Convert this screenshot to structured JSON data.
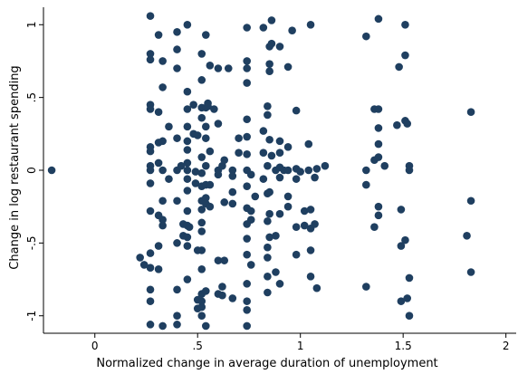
{
  "chart_data": {
    "type": "scatter",
    "title": "",
    "xlabel": "Normalized change in average duration of unemployment",
    "ylabel": "Change in log restaurant spending",
    "xlim": [
      -0.25,
      2.05
    ],
    "ylim": [
      -1.12,
      1.12
    ],
    "xticks": [
      {
        "value": 0,
        "label": "0"
      },
      {
        "value": 0.5,
        "label": ".5"
      },
      {
        "value": 1,
        "label": "1"
      },
      {
        "value": 1.5,
        "label": "1.5"
      },
      {
        "value": 2,
        "label": "2"
      }
    ],
    "yticks": [
      {
        "value": -1,
        "label": "-1"
      },
      {
        "value": -0.5,
        "label": "-.5"
      },
      {
        "value": 0,
        "label": "0"
      },
      {
        "value": 0.5,
        "label": ".5"
      },
      {
        "value": 1,
        "label": "1"
      }
    ],
    "marker_color": "#1f3f60",
    "grid": false,
    "points": [
      [
        -0.21,
        0.0
      ],
      [
        0.22,
        -0.6
      ],
      [
        0.24,
        -0.65
      ],
      [
        0.27,
        1.06
      ],
      [
        0.27,
        0.8
      ],
      [
        0.27,
        0.76
      ],
      [
        0.27,
        0.45
      ],
      [
        0.27,
        0.42
      ],
      [
        0.27,
        0.16
      ],
      [
        0.27,
        0.13
      ],
      [
        0.27,
        0.03
      ],
      [
        0.27,
        0.0
      ],
      [
        0.27,
        -0.09
      ],
      [
        0.27,
        -0.28
      ],
      [
        0.27,
        -0.57
      ],
      [
        0.27,
        -0.67
      ],
      [
        0.27,
        -0.82
      ],
      [
        0.27,
        -0.9
      ],
      [
        0.27,
        -1.06
      ],
      [
        0.31,
        0.93
      ],
      [
        0.31,
        0.4
      ],
      [
        0.31,
        0.19
      ],
      [
        0.31,
        0.05
      ],
      [
        0.31,
        -0.31
      ],
      [
        0.31,
        -0.52
      ],
      [
        0.31,
        -0.68
      ],
      [
        0.33,
        0.75
      ],
      [
        0.33,
        0.57
      ],
      [
        0.33,
        0.2
      ],
      [
        0.33,
        0.0
      ],
      [
        0.33,
        -0.21
      ],
      [
        0.33,
        -0.34
      ],
      [
        0.33,
        -0.38
      ],
      [
        0.33,
        -1.07
      ],
      [
        0.36,
        0.3
      ],
      [
        0.36,
        -0.06
      ],
      [
        0.4,
        0.95
      ],
      [
        0.4,
        0.83
      ],
      [
        0.4,
        0.7
      ],
      [
        0.4,
        0.22
      ],
      [
        0.4,
        0.0
      ],
      [
        0.4,
        -0.21
      ],
      [
        0.4,
        -0.5
      ],
      [
        0.4,
        -0.82
      ],
      [
        0.4,
        -1.0
      ],
      [
        0.4,
        -1.06
      ],
      [
        0.42,
        0.03
      ],
      [
        0.43,
        -0.37
      ],
      [
        0.43,
        -0.45
      ],
      [
        0.45,
        1.0
      ],
      [
        0.45,
        0.54
      ],
      [
        0.45,
        0.42
      ],
      [
        0.45,
        0.3
      ],
      [
        0.45,
        0.2
      ],
      [
        0.45,
        0.14
      ],
      [
        0.45,
        0.05
      ],
      [
        0.45,
        0.0
      ],
      [
        0.45,
        -0.06
      ],
      [
        0.45,
        -0.14
      ],
      [
        0.45,
        -0.28
      ],
      [
        0.45,
        -0.38
      ],
      [
        0.45,
        -0.46
      ],
      [
        0.45,
        -0.52
      ],
      [
        0.45,
        -0.75
      ],
      [
        0.46,
        -0.39
      ],
      [
        0.48,
        0.45
      ],
      [
        0.48,
        0.25
      ],
      [
        0.49,
        -0.01
      ],
      [
        0.49,
        -0.09
      ],
      [
        0.5,
        0.24
      ],
      [
        0.5,
        -0.55
      ],
      [
        0.5,
        -0.89
      ],
      [
        0.5,
        -0.95
      ],
      [
        0.52,
        0.8
      ],
      [
        0.52,
        0.62
      ],
      [
        0.52,
        0.43
      ],
      [
        0.52,
        0.36
      ],
      [
        0.52,
        0.09
      ],
      [
        0.52,
        -0.02
      ],
      [
        0.52,
        -0.11
      ],
      [
        0.52,
        -0.21
      ],
      [
        0.52,
        -0.27
      ],
      [
        0.52,
        -0.36
      ],
      [
        0.52,
        -0.42
      ],
      [
        0.52,
        -0.55
      ],
      [
        0.52,
        -0.68
      ],
      [
        0.52,
        -0.85
      ],
      [
        0.52,
        -0.9
      ],
      [
        0.52,
        -0.94
      ],
      [
        0.52,
        -1.0
      ],
      [
        0.54,
        0.93
      ],
      [
        0.54,
        0.43
      ],
      [
        0.54,
        0.3
      ],
      [
        0.54,
        0.22
      ],
      [
        0.54,
        0.03
      ],
      [
        0.54,
        -0.1
      ],
      [
        0.54,
        -0.19
      ],
      [
        0.54,
        -0.23
      ],
      [
        0.54,
        -0.83
      ],
      [
        0.54,
        -1.07
      ],
      [
        0.55,
        0.46
      ],
      [
        0.55,
        0.44
      ],
      [
        0.56,
        0.72
      ],
      [
        0.56,
        0.13
      ],
      [
        0.56,
        -0.1
      ],
      [
        0.56,
        -0.25
      ],
      [
        0.58,
        0.42
      ],
      [
        0.6,
        0.7
      ],
      [
        0.6,
        0.32
      ],
      [
        0.6,
        0.0
      ],
      [
        0.6,
        -0.03
      ],
      [
        0.6,
        -0.62
      ],
      [
        0.6,
        -0.85
      ],
      [
        0.62,
        0.03
      ],
      [
        0.62,
        -0.8
      ],
      [
        0.62,
        -0.86
      ],
      [
        0.63,
        0.07
      ],
      [
        0.63,
        -0.22
      ],
      [
        0.63,
        -0.62
      ],
      [
        0.65,
        0.7
      ],
      [
        0.67,
        0.0
      ],
      [
        0.67,
        -0.04
      ],
      [
        0.67,
        -0.15
      ],
      [
        0.67,
        -0.23
      ],
      [
        0.67,
        -0.88
      ],
      [
        0.7,
        0.22
      ],
      [
        0.7,
        0.12
      ],
      [
        0.74,
        0.98
      ],
      [
        0.74,
        0.75
      ],
      [
        0.74,
        0.7
      ],
      [
        0.74,
        0.6
      ],
      [
        0.74,
        0.35
      ],
      [
        0.74,
        0.23
      ],
      [
        0.74,
        0.11
      ],
      [
        0.74,
        0.0
      ],
      [
        0.74,
        -0.11
      ],
      [
        0.74,
        -0.26
      ],
      [
        0.74,
        -0.37
      ],
      [
        0.74,
        -0.47
      ],
      [
        0.74,
        -0.58
      ],
      [
        0.74,
        -0.78
      ],
      [
        0.74,
        -0.9
      ],
      [
        0.74,
        -0.96
      ],
      [
        0.74,
        -1.07
      ],
      [
        0.76,
        -0.03
      ],
      [
        0.76,
        -0.28
      ],
      [
        0.76,
        -0.34
      ],
      [
        0.76,
        -0.65
      ],
      [
        0.78,
        -0.18
      ],
      [
        0.82,
        0.98
      ],
      [
        0.82,
        0.27
      ],
      [
        0.82,
        0.12
      ],
      [
        0.82,
        -0.06
      ],
      [
        0.84,
        0.44
      ],
      [
        0.84,
        0.38
      ],
      [
        0.84,
        0.03
      ],
      [
        0.84,
        -0.16
      ],
      [
        0.84,
        -0.35
      ],
      [
        0.84,
        -0.53
      ],
      [
        0.84,
        -0.6
      ],
      [
        0.84,
        -0.73
      ],
      [
        0.84,
        -0.84
      ],
      [
        0.85,
        0.85
      ],
      [
        0.85,
        0.73
      ],
      [
        0.85,
        0.68
      ],
      [
        0.85,
        0.21
      ],
      [
        0.85,
        -0.15
      ],
      [
        0.85,
        -0.3
      ],
      [
        0.85,
        -0.46
      ],
      [
        0.86,
        1.03
      ],
      [
        0.86,
        0.87
      ],
      [
        0.86,
        0.1
      ],
      [
        0.88,
        0.0
      ],
      [
        0.88,
        -0.45
      ],
      [
        0.88,
        -0.7
      ],
      [
        0.9,
        0.85
      ],
      [
        0.9,
        0.2
      ],
      [
        0.9,
        0.12
      ],
      [
        0.9,
        0.02
      ],
      [
        0.9,
        -0.05
      ],
      [
        0.9,
        -0.3
      ],
      [
        0.9,
        -0.78
      ],
      [
        0.92,
        0.0
      ],
      [
        0.94,
        0.71
      ],
      [
        0.94,
        0.16
      ],
      [
        0.94,
        0.0
      ],
      [
        0.94,
        -0.18
      ],
      [
        0.94,
        -0.25
      ],
      [
        0.96,
        0.96
      ],
      [
        0.98,
        0.41
      ],
      [
        0.98,
        0.01
      ],
      [
        0.98,
        -0.06
      ],
      [
        0.98,
        -0.39
      ],
      [
        0.98,
        -0.58
      ],
      [
        1.0,
        -0.01
      ],
      [
        1.02,
        -0.38
      ],
      [
        1.02,
        -0.28
      ],
      [
        1.04,
        0.18
      ],
      [
        1.04,
        0.0
      ],
      [
        1.05,
        1.0
      ],
      [
        1.05,
        -0.27
      ],
      [
        1.05,
        -0.4
      ],
      [
        1.05,
        -0.55
      ],
      [
        1.05,
        -0.73
      ],
      [
        1.07,
        -0.05
      ],
      [
        1.07,
        -0.37
      ],
      [
        1.08,
        0.01
      ],
      [
        1.08,
        -0.81
      ],
      [
        1.12,
        0.03
      ],
      [
        1.32,
        0.92
      ],
      [
        1.32,
        0.0
      ],
      [
        1.32,
        -0.1
      ],
      [
        1.32,
        -0.8
      ],
      [
        1.36,
        0.42
      ],
      [
        1.36,
        0.07
      ],
      [
        1.36,
        -0.39
      ],
      [
        1.38,
        1.04
      ],
      [
        1.38,
        0.42
      ],
      [
        1.38,
        0.29
      ],
      [
        1.38,
        0.18
      ],
      [
        1.38,
        0.09
      ],
      [
        1.38,
        -0.25
      ],
      [
        1.38,
        -0.31
      ],
      [
        1.41,
        0.03
      ],
      [
        1.47,
        0.31
      ],
      [
        1.48,
        0.71
      ],
      [
        1.49,
        -0.27
      ],
      [
        1.49,
        -0.52
      ],
      [
        1.49,
        -0.9
      ],
      [
        1.51,
        1.0
      ],
      [
        1.51,
        0.79
      ],
      [
        1.51,
        0.34
      ],
      [
        1.51,
        -0.48
      ],
      [
        1.52,
        0.32
      ],
      [
        1.52,
        -0.88
      ],
      [
        1.53,
        0.03
      ],
      [
        1.53,
        0.0
      ],
      [
        1.53,
        -0.74
      ],
      [
        1.53,
        -1.0
      ],
      [
        1.81,
        -0.45
      ],
      [
        1.83,
        0.4
      ],
      [
        1.83,
        -0.21
      ],
      [
        1.83,
        -0.7
      ]
    ]
  }
}
